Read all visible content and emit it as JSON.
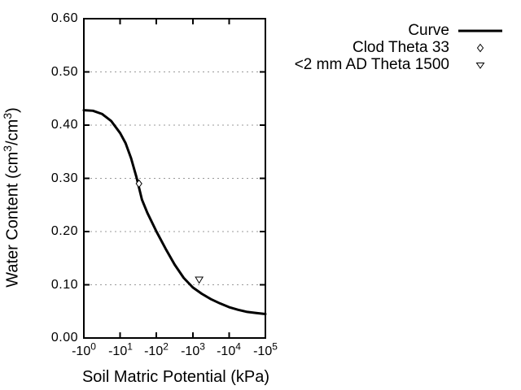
{
  "colors": {
    "background": "#ffffff",
    "foreground": "#000000",
    "grid": "#999999"
  },
  "chart_data": {
    "type": "line+scatter",
    "title": "",
    "xlabel": "Soil Matric Potential (kPa)",
    "ylabel": "Water Content (cm³/cm³)",
    "ylabel_parts": {
      "p1": "Water Content (cm",
      "sup1": "3",
      "p2": "/cm",
      "sup2": "3",
      "p3": ")"
    },
    "x_axis": {
      "scale": "negative-log10",
      "unit": "kPa",
      "decade_min": 0,
      "decade_max": 5,
      "ticks": [
        {
          "base": "-10",
          "exp": "0"
        },
        {
          "base": "-10",
          "exp": "1"
        },
        {
          "base": "-10",
          "exp": "2"
        },
        {
          "base": "-10",
          "exp": "3"
        },
        {
          "base": "-10",
          "exp": "4"
        },
        {
          "base": "-10",
          "exp": "5"
        }
      ]
    },
    "y_axis": {
      "min": 0.0,
      "max": 0.6,
      "ticks": [
        "0.60",
        "0.50",
        "0.40",
        "0.30",
        "0.20",
        "0.10",
        "0.00"
      ],
      "tick_values": [
        0.6,
        0.5,
        0.4,
        0.3,
        0.2,
        0.1,
        0.0
      ]
    },
    "grid": {
      "horizontal_at": [
        0.5,
        0.4,
        0.3,
        0.2,
        0.1
      ],
      "style": "dotted"
    },
    "series": [
      {
        "name": "Curve",
        "type": "line",
        "points_log10kpa_theta": [
          [
            0.0,
            0.428
          ],
          [
            0.25,
            0.427
          ],
          [
            0.5,
            0.421
          ],
          [
            0.75,
            0.408
          ],
          [
            1.0,
            0.385
          ],
          [
            1.15,
            0.366
          ],
          [
            1.3,
            0.338
          ],
          [
            1.45,
            0.302
          ],
          [
            1.6,
            0.26
          ],
          [
            1.75,
            0.235
          ],
          [
            2.0,
            0.2
          ],
          [
            2.25,
            0.168
          ],
          [
            2.5,
            0.138
          ],
          [
            2.75,
            0.113
          ],
          [
            3.0,
            0.095
          ],
          [
            3.25,
            0.083
          ],
          [
            3.5,
            0.073
          ],
          [
            3.75,
            0.065
          ],
          [
            4.0,
            0.058
          ],
          [
            4.25,
            0.053
          ],
          [
            4.5,
            0.049
          ],
          [
            4.75,
            0.047
          ],
          [
            5.0,
            0.045
          ]
        ]
      },
      {
        "name": "Clod Theta 33",
        "type": "scatter",
        "marker": "diamond",
        "points": [
          {
            "kpa": -33,
            "theta": 0.29
          }
        ]
      },
      {
        "name": "<2 mm AD Theta 1500",
        "type": "scatter",
        "marker": "triangle-down",
        "points": [
          {
            "kpa": -1500,
            "theta": 0.11
          }
        ]
      }
    ],
    "legend_position": "outside-top-right"
  }
}
